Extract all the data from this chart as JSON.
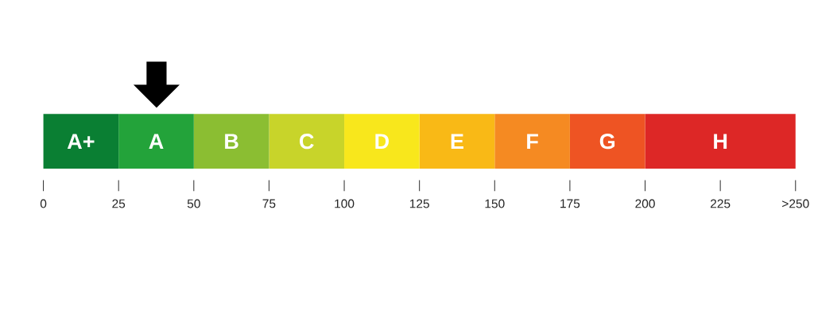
{
  "chart_data": {
    "type": "bar",
    "orientation": "horizontal",
    "stacked": true,
    "categories": [
      null
    ],
    "series": [
      {
        "name": "A+",
        "color": "#0a7f33",
        "values": [
          25
        ]
      },
      {
        "name": "A",
        "color": "#23a33a",
        "values": [
          25
        ]
      },
      {
        "name": "B",
        "color": "#8bbe32",
        "values": [
          25
        ]
      },
      {
        "name": "C",
        "color": "#c8d42a",
        "values": [
          25
        ]
      },
      {
        "name": "D",
        "color": "#f8e71c",
        "values": [
          25
        ]
      },
      {
        "name": "E",
        "color": "#f9b916",
        "values": [
          25
        ]
      },
      {
        "name": "F",
        "color": "#f58a22",
        "values": [
          25
        ]
      },
      {
        "name": "G",
        "color": "#ee5423",
        "values": [
          25
        ]
      },
      {
        "name": "H",
        "color": "#dd2726",
        "values": [
          50
        ]
      }
    ],
    "xlim": [
      0,
      250
    ],
    "xticks": [
      0,
      25,
      50,
      75,
      100,
      125,
      150,
      175,
      200,
      225,
      {
        "value": 250,
        "label": ">250"
      }
    ],
    "grid": false
  }
}
